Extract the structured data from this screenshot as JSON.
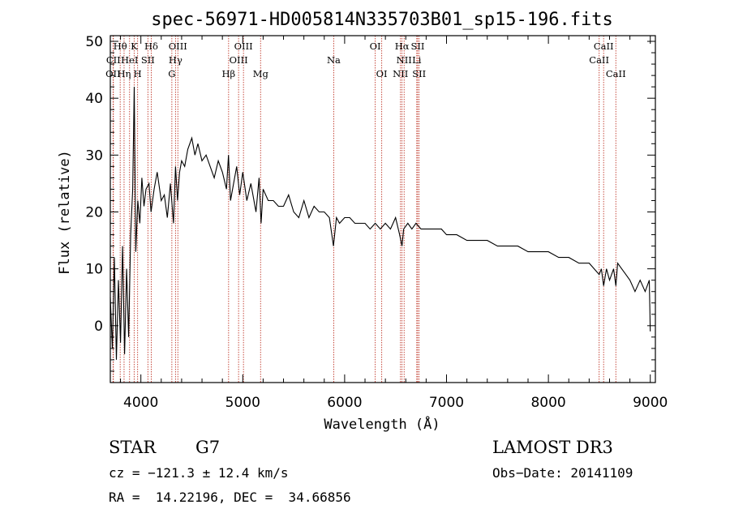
{
  "chart_data": {
    "type": "line",
    "title": "spec-56971-HD005814N335703B01_sp15-196.fits",
    "xlabel": "Wavelength (Å)",
    "ylabel": "Flux (relative)",
    "xlim": [
      3700,
      9050
    ],
    "ylim": [
      -10,
      51
    ],
    "xticks": [
      4000,
      5000,
      6000,
      7000,
      8000,
      9000
    ],
    "yticks": [
      0,
      10,
      20,
      30,
      40,
      50
    ],
    "series": [
      {
        "name": "flux",
        "x": [
          3700,
          3720,
          3740,
          3760,
          3780,
          3800,
          3820,
          3840,
          3860,
          3880,
          3900,
          3920,
          3935,
          3950,
          3970,
          3990,
          4010,
          4030,
          4050,
          4080,
          4100,
          4130,
          4160,
          4200,
          4230,
          4260,
          4290,
          4320,
          4340,
          4360,
          4380,
          4400,
          4430,
          4460,
          4500,
          4530,
          4560,
          4600,
          4640,
          4680,
          4720,
          4760,
          4800,
          4840,
          4860,
          4880,
          4910,
          4940,
          4970,
          5000,
          5040,
          5080,
          5130,
          5160,
          5180,
          5200,
          5250,
          5300,
          5350,
          5400,
          5450,
          5500,
          5550,
          5600,
          5650,
          5700,
          5750,
          5800,
          5850,
          5890,
          5920,
          5950,
          6000,
          6050,
          6100,
          6150,
          6200,
          6250,
          6300,
          6350,
          6400,
          6450,
          6500,
          6540,
          6563,
          6580,
          6620,
          6660,
          6700,
          6750,
          6800,
          6850,
          6900,
          6950,
          7000,
          7100,
          7200,
          7300,
          7400,
          7500,
          7600,
          7700,
          7800,
          7900,
          8000,
          8100,
          8200,
          8300,
          8400,
          8450,
          8498,
          8520,
          8542,
          8570,
          8600,
          8640,
          8662,
          8680,
          8720,
          8760,
          8800,
          8850,
          8900,
          8950,
          8990,
          9000
        ],
        "values": [
          5,
          -4,
          12,
          -6,
          8,
          -3,
          14,
          -5,
          10,
          -2,
          16,
          24,
          42,
          13,
          22,
          18,
          26,
          21,
          24,
          25,
          20,
          24,
          27,
          22,
          23,
          19,
          25,
          18,
          28,
          22,
          27,
          29,
          28,
          31,
          33,
          30,
          32,
          29,
          30,
          28,
          26,
          29,
          27,
          24,
          30,
          22,
          25,
          28,
          23,
          27,
          22,
          25,
          20,
          26,
          18,
          24,
          22,
          22,
          21,
          21,
          23,
          20,
          19,
          22,
          19,
          21,
          20,
          20,
          19,
          14,
          19,
          18,
          19,
          19,
          18,
          18,
          18,
          17,
          18,
          17,
          18,
          17,
          19,
          16,
          14,
          17,
          18,
          17,
          18,
          17,
          17,
          17,
          17,
          17,
          16,
          16,
          15,
          15,
          15,
          14,
          14,
          14,
          13,
          13,
          13,
          12,
          12,
          11,
          11,
          10,
          9,
          10,
          7,
          10,
          8,
          10,
          7,
          11,
          10,
          9,
          8,
          6,
          8,
          6,
          8,
          -1
        ]
      }
    ],
    "spectral_lines": [
      {
        "label": "Hθ",
        "x": 3797,
        "row": 1
      },
      {
        "label": "K",
        "x": 3934,
        "row": 1
      },
      {
        "label": "Hδ",
        "x": 4102,
        "row": 1
      },
      {
        "label": "OIII",
        "x": 4363,
        "row": 1
      },
      {
        "label": "OIII",
        "x": 5007,
        "row": 1
      },
      {
        "label": "OI",
        "x": 6300,
        "row": 1
      },
      {
        "label": "Hα",
        "x": 6563,
        "row": 1
      },
      {
        "label": "SII",
        "x": 6717,
        "row": 1
      },
      {
        "label": "CaII",
        "x": 8542,
        "row": 1
      },
      {
        "label": "CII",
        "x": 3730,
        "row": 2
      },
      {
        "label": "HeI",
        "x": 3889,
        "row": 2
      },
      {
        "label": "SII",
        "x": 4069,
        "row": 2
      },
      {
        "label": "Hγ",
        "x": 4340,
        "row": 2
      },
      {
        "label": "OIII",
        "x": 4959,
        "row": 2
      },
      {
        "label": "Na",
        "x": 5893,
        "row": 2
      },
      {
        "label": "NII",
        "x": 6584,
        "row": 2
      },
      {
        "label": "Li",
        "x": 6708,
        "row": 2
      },
      {
        "label": "CaII",
        "x": 8498,
        "row": 2
      },
      {
        "label": "OII",
        "x": 3727,
        "row": 3
      },
      {
        "label": "Hη",
        "x": 3835,
        "row": 3
      },
      {
        "label": "H",
        "x": 3968,
        "row": 3
      },
      {
        "label": "G",
        "x": 4304,
        "row": 3
      },
      {
        "label": "Hβ",
        "x": 4861,
        "row": 3
      },
      {
        "label": "Mg",
        "x": 5175,
        "row": 3
      },
      {
        "label": "OI",
        "x": 6364,
        "row": 3
      },
      {
        "label": "NII",
        "x": 6548,
        "row": 3
      },
      {
        "label": "SII",
        "x": 6731,
        "row": 3
      },
      {
        "label": "CaII",
        "x": 8662,
        "row": 3
      }
    ]
  },
  "info": {
    "object_class": "STAR",
    "subclass": "G7",
    "survey": "LAMOST DR3",
    "cz": "cz = −121.3 ± 12.4 km/s",
    "obs_date": "Obs−Date: 20141109",
    "coords": "RA =  14.22196, DEC =  34.66856"
  }
}
